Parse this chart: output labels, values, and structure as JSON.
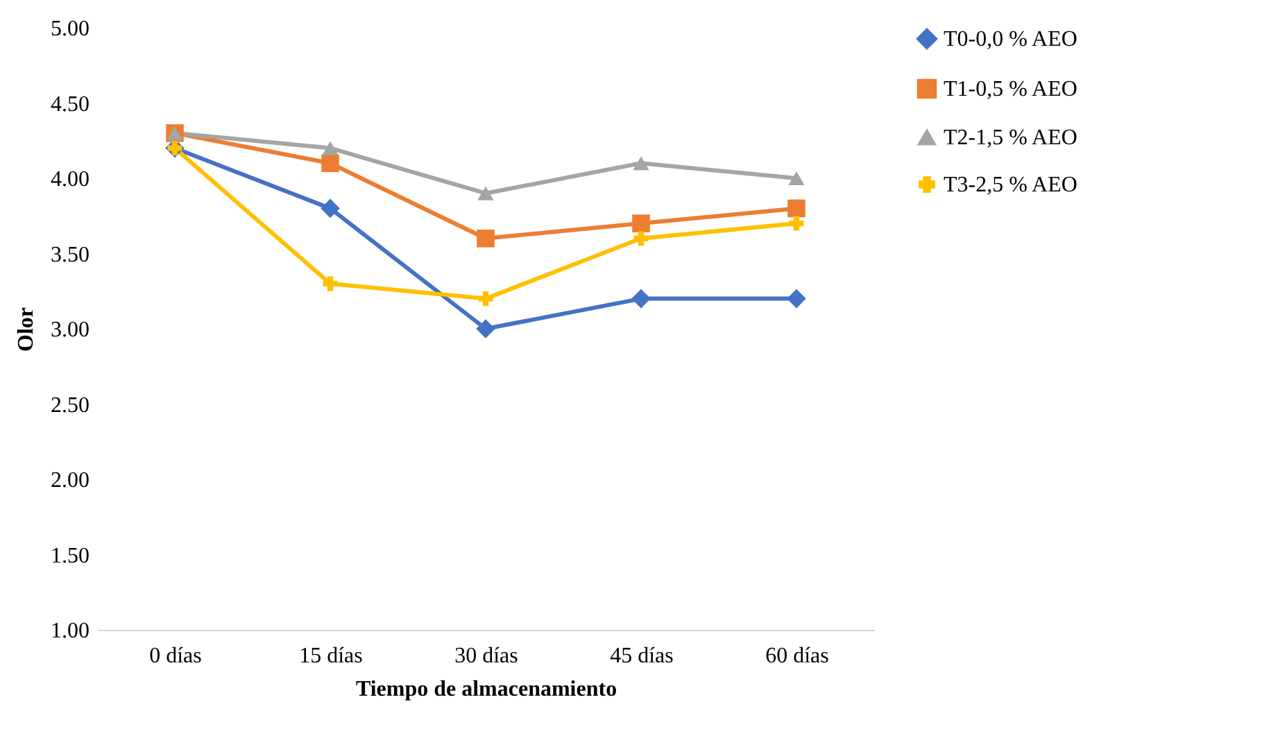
{
  "chart_data": {
    "type": "line",
    "xlabel": "Tiempo de almacenamiento",
    "ylabel": "Olor",
    "categories": [
      "0 días",
      "15 días",
      "30 días",
      "45 días",
      "60 días"
    ],
    "series": [
      {
        "name": "T0-0,0 % AEO",
        "color": "#4472c4",
        "marker": "diamond",
        "values": [
          4.2,
          3.8,
          3.0,
          3.2,
          3.2
        ]
      },
      {
        "name": "T1-0,5 % AEO",
        "color": "#ed7d31",
        "marker": "square",
        "values": [
          4.3,
          4.1,
          3.6,
          3.7,
          3.8
        ]
      },
      {
        "name": "T2-1,5 % AEO",
        "color": "#a5a5a5",
        "marker": "triangle",
        "values": [
          4.3,
          4.2,
          3.9,
          4.1,
          4.0
        ]
      },
      {
        "name": "T3-2,5 % AEO",
        "color": "#ffc000",
        "marker": "cross",
        "values": [
          4.2,
          3.3,
          3.2,
          3.6,
          3.7
        ]
      }
    ],
    "ylim": [
      1,
      5
    ],
    "yticks": [
      {
        "value": 1,
        "label": "1.00"
      },
      {
        "value": 1.5,
        "label": "1.50"
      },
      {
        "value": 2,
        "label": "2.00"
      },
      {
        "value": 2.5,
        "label": "2.50"
      },
      {
        "value": 3,
        "label": "3.00"
      },
      {
        "value": 3.5,
        "label": "3.50"
      },
      {
        "value": 4,
        "label": "4.00"
      },
      {
        "value": 4.5,
        "label": "4.50"
      },
      {
        "value": 5,
        "label": "5.00"
      }
    ],
    "grid": false,
    "legend": "right",
    "line_style": "solid"
  }
}
